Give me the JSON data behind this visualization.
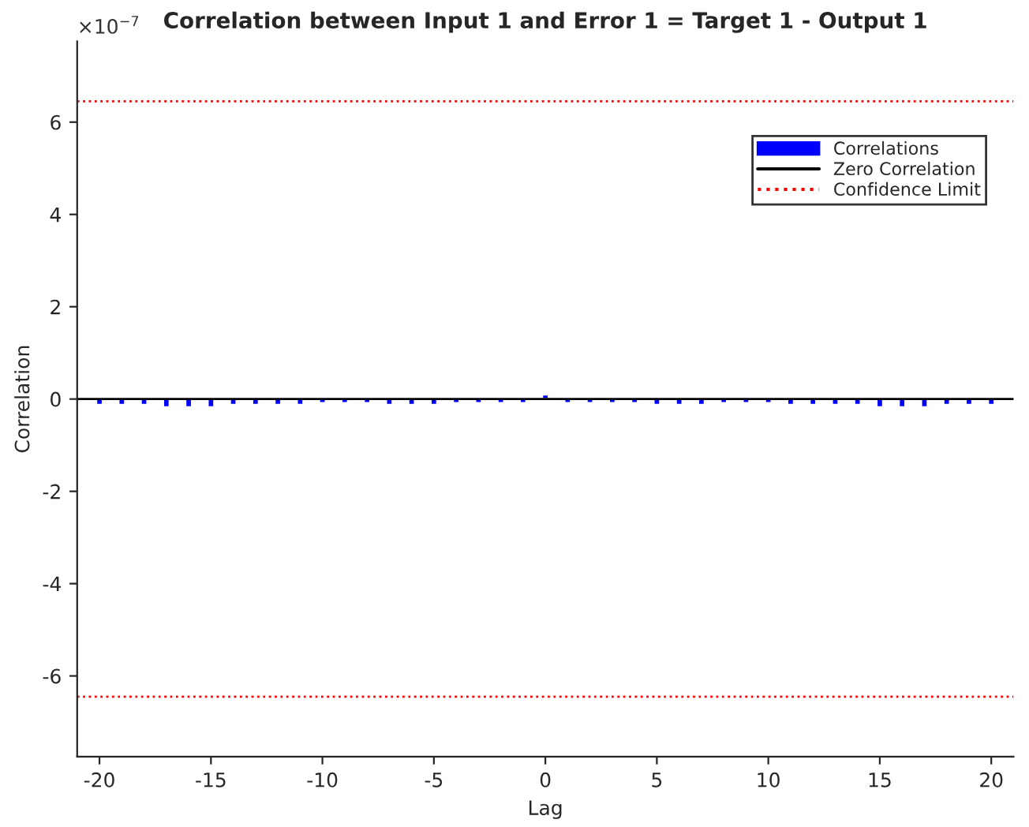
{
  "chart_data": {
    "type": "bar",
    "title": "Correlation between Input 1 and Error 1 = Target 1 - Output 1",
    "xlabel": "Lag",
    "ylabel": "Correlation",
    "x": [
      -20,
      -19,
      -18,
      -17,
      -16,
      -15,
      -14,
      -13,
      -12,
      -11,
      -10,
      -9,
      -8,
      -7,
      -6,
      -5,
      -4,
      -3,
      -2,
      -1,
      0,
      1,
      2,
      3,
      4,
      5,
      6,
      7,
      8,
      9,
      10,
      11,
      12,
      13,
      14,
      15,
      16,
      17,
      18,
      19,
      20
    ],
    "series": [
      {
        "name": "Correlations",
        "color": "#0000ff",
        "values": [
          -0.13,
          -0.13,
          -0.13,
          -0.18,
          -0.18,
          -0.18,
          -0.13,
          -0.13,
          -0.13,
          -0.13,
          -0.09,
          -0.09,
          -0.09,
          -0.13,
          -0.13,
          -0.13,
          -0.09,
          -0.09,
          -0.09,
          -0.09,
          0.1,
          -0.09,
          -0.09,
          -0.09,
          -0.09,
          -0.13,
          -0.13,
          -0.13,
          -0.09,
          -0.09,
          -0.09,
          -0.13,
          -0.13,
          -0.13,
          -0.13,
          -0.18,
          -0.18,
          -0.18,
          -0.13,
          -0.13,
          -0.13
        ]
      }
    ],
    "ref_lines": [
      {
        "axis": "y",
        "value": 0,
        "label": "Zero Correlation",
        "color": "#000000",
        "line_style": "solid"
      },
      {
        "axis": "y",
        "value": 6.45,
        "label": "Confidence Limit",
        "color": "#ff0000",
        "line_style": "dotted"
      },
      {
        "axis": "y",
        "value": -6.45,
        "color": "#ff0000",
        "line_style": "dotted"
      }
    ],
    "annotations": [
      "×10$^{−7}$"
    ],
    "xlim": [
      -21,
      21
    ],
    "xticks": [
      -20,
      -15,
      -10,
      -5,
      0,
      5,
      10,
      15,
      20
    ],
    "ylim": [
      -7.75,
      7.75
    ],
    "yticks": [
      -6,
      -4,
      -2,
      0,
      2,
      4,
      6
    ],
    "grid": false,
    "legend": "top right"
  }
}
